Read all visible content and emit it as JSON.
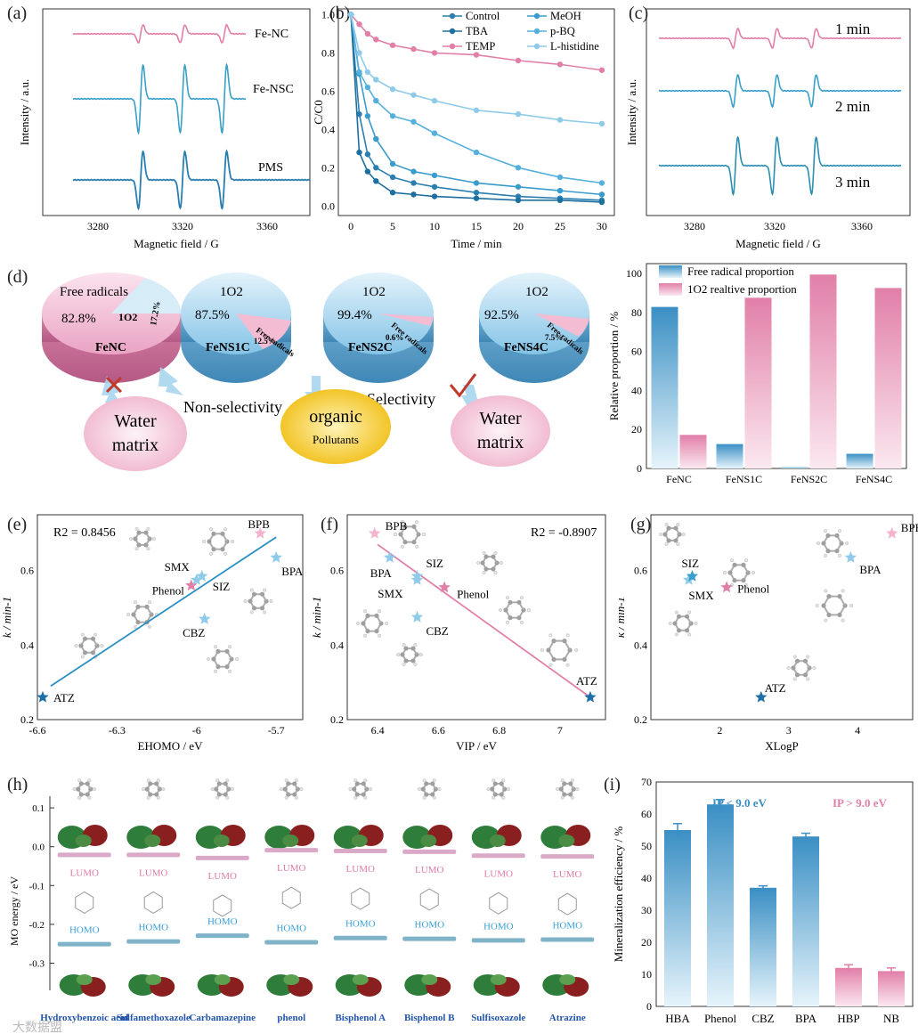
{
  "colors": {
    "pink": "#e17fa8",
    "lightpink": "#f4c4d8",
    "blue": "#3a8fc4",
    "darkblue": "#1f6fa6",
    "lightblue": "#8fcbe9",
    "teal": "#3aa0c8",
    "yellow": "#f6d24a"
  },
  "panel_labels": [
    "(a)",
    "(b)",
    "(c)",
    "(d)",
    "(e)",
    "(f)",
    "(g)",
    "(h)",
    "(i)"
  ],
  "panel_a": {
    "traces": [
      "Fe-NC",
      "Fe-NSC",
      "PMS"
    ],
    "xlabel": "Magnetic field / G",
    "ylabel": "Intensity / a.u.",
    "xticks": [
      "3280",
      "3320",
      "3360"
    ]
  },
  "panel_c": {
    "traces": [
      "1 min",
      "2 min",
      "3 min"
    ],
    "xlabel": "Magnetic field / G",
    "ylabel": "Intensity / a.u.",
    "xticks": [
      "3280",
      "3320",
      "3360"
    ]
  },
  "panel_d": {
    "pies": [
      {
        "catalyst": "FeNC",
        "main_label": "Free radicals",
        "main_value": "82.8%",
        "minor_label": "1O2",
        "minor_value": "17.2%"
      },
      {
        "catalyst": "FeNS1C",
        "main_label": "1O2",
        "main_value": "87.5%",
        "minor_label": "Free radicals",
        "minor_value": "12.5%"
      },
      {
        "catalyst": "FeNS2C",
        "main_label": "1O2",
        "main_value": "99.4%",
        "minor_label": "Free radicals",
        "minor_value": "0.6%"
      },
      {
        "catalyst": "FeNS4C",
        "main_label": "1O2",
        "main_value": "92.5%",
        "minor_label": "Free radicals",
        "minor_value": "7.5%"
      }
    ],
    "bubbles": [
      {
        "line1": "Water",
        "line2": "matrix"
      },
      {
        "line1": "organic",
        "line2": "Pollutants"
      },
      {
        "line1": "Water",
        "line2": "matrix"
      }
    ],
    "non_selectivity": "Non-selectivity",
    "selectivity": "Selectivity"
  },
  "panel_h": {
    "ylabel": "MO energy / eV",
    "yticks": [
      "0.1",
      "0.0",
      "-0.1",
      "-0.2",
      "-0.3"
    ],
    "lumo": "LUMO",
    "homo": "HOMO",
    "compounds": [
      "Hydroxybenzoic acid",
      "Sulfamethoxazole",
      "Carbamazepine",
      "phenol",
      "Bisphenol A",
      "Bisphenol B",
      "Sulfisoxazole",
      "Atrazine"
    ],
    "watermark": "大数据盟"
  },
  "chart_data": [
    {
      "id": "b",
      "type": "line",
      "xlabel": "Time / min",
      "ylabel": "C/C0",
      "xlim": [
        0,
        30
      ],
      "ylim": [
        0,
        1.0
      ],
      "xticks": [
        0,
        5,
        10,
        15,
        20,
        25,
        30
      ],
      "yticks": [
        0.0,
        0.2,
        0.4,
        0.6,
        0.8,
        1.0
      ],
      "series": [
        {
          "name": "Control",
          "color": "#2a7fb0",
          "x": [
            0,
            1,
            2,
            3,
            5,
            7.5,
            10,
            15,
            20,
            25,
            30
          ],
          "y": [
            1.0,
            0.48,
            0.27,
            0.2,
            0.15,
            0.12,
            0.1,
            0.07,
            0.05,
            0.04,
            0.03
          ]
        },
        {
          "name": "TBA",
          "color": "#1d6fa0",
          "x": [
            0,
            1,
            2,
            3,
            5,
            7.5,
            10,
            15,
            20,
            25,
            30
          ],
          "y": [
            1.0,
            0.28,
            0.18,
            0.13,
            0.07,
            0.06,
            0.05,
            0.04,
            0.03,
            0.03,
            0.02
          ]
        },
        {
          "name": "TEMP",
          "color": "#e17fa8",
          "x": [
            0,
            1,
            2,
            3,
            5,
            7.5,
            10,
            15,
            20,
            25,
            30
          ],
          "y": [
            1.0,
            0.95,
            0.9,
            0.87,
            0.84,
            0.82,
            0.8,
            0.79,
            0.76,
            0.74,
            0.71
          ]
        },
        {
          "name": "MeOH",
          "color": "#3a9ccc",
          "x": [
            0,
            1,
            2,
            3,
            5,
            7.5,
            10,
            15,
            20,
            25,
            30
          ],
          "y": [
            1.0,
            0.69,
            0.47,
            0.35,
            0.22,
            0.18,
            0.16,
            0.12,
            0.1,
            0.08,
            0.06
          ]
        },
        {
          "name": "p-BQ",
          "color": "#55b0dc",
          "x": [
            0,
            1,
            2,
            3,
            5,
            7.5,
            10,
            15,
            20,
            25,
            30
          ],
          "y": [
            1.0,
            0.7,
            0.62,
            0.55,
            0.47,
            0.44,
            0.38,
            0.28,
            0.2,
            0.15,
            0.12
          ]
        },
        {
          "name": "L-histidine",
          "color": "#8fcbe9",
          "x": [
            0,
            1,
            2,
            3,
            5,
            7.5,
            10,
            15,
            20,
            25,
            30
          ],
          "y": [
            1.0,
            0.8,
            0.7,
            0.66,
            0.61,
            0.58,
            0.55,
            0.5,
            0.48,
            0.45,
            0.43
          ]
        }
      ]
    },
    {
      "id": "d_bar",
      "type": "bar",
      "ylabel": "Relative proportion / %",
      "ylim": [
        0,
        100
      ],
      "yticks": [
        0,
        20,
        40,
        60,
        80,
        100
      ],
      "categories": [
        "FeNC",
        "FeNS1C",
        "FeNS2C",
        "FeNS4C"
      ],
      "series": [
        {
          "name": "Free radical proportion",
          "color": "#3a8fc4",
          "values": [
            82.8,
            12.5,
            0.6,
            7.5
          ]
        },
        {
          "name": "1O2 realtive proportion",
          "color": "#e17fa8",
          "values": [
            17.2,
            87.5,
            99.4,
            92.5
          ]
        }
      ]
    },
    {
      "id": "e",
      "type": "scatter",
      "xlabel": "EHOMO / eV",
      "ylabel": "k / min-1",
      "annotation": "R2 = 0.8456",
      "xlim": [
        -6.6,
        -5.6
      ],
      "ylim": [
        0.2,
        0.75
      ],
      "xticks": [
        -6.6,
        -6.3,
        -6.0,
        -5.7
      ],
      "yticks": [
        0.2,
        0.4,
        0.6
      ],
      "points": [
        {
          "label": "ATZ",
          "x": -6.58,
          "y": 0.26,
          "color": "#1f6fa6"
        },
        {
          "label": "CBZ",
          "x": -5.97,
          "y": 0.47,
          "color": "#8fcbe9"
        },
        {
          "label": "Phenol",
          "x": -6.02,
          "y": 0.56,
          "color": "#e17fa8"
        },
        {
          "label": "SMX",
          "x": -6.0,
          "y": 0.575,
          "color": "#8fcbe9"
        },
        {
          "label": "SIZ",
          "x": -5.98,
          "y": 0.585,
          "color": "#8fcbe9"
        },
        {
          "label": "BPA",
          "x": -5.7,
          "y": 0.635,
          "color": "#8fcbe9"
        },
        {
          "label": "BPB",
          "x": -5.76,
          "y": 0.7,
          "color": "#f4b4cf"
        }
      ],
      "fit": {
        "x": [
          -6.55,
          -5.7
        ],
        "y": [
          0.29,
          0.69
        ]
      }
    },
    {
      "id": "f",
      "type": "scatter",
      "xlabel": "VIP / eV",
      "ylabel": "k / min-1",
      "annotation": "R2 = -0.8907",
      "xlim": [
        6.3,
        7.15
      ],
      "ylim": [
        0.2,
        0.75
      ],
      "xticks": [
        6.4,
        6.6,
        6.8,
        7.0
      ],
      "yticks": [
        0.2,
        0.4,
        0.6
      ],
      "points": [
        {
          "label": "BPB",
          "x": 6.39,
          "y": 0.7,
          "color": "#f4b4cf"
        },
        {
          "label": "BPA",
          "x": 6.44,
          "y": 0.635,
          "color": "#8fcbe9"
        },
        {
          "label": "SIZ",
          "x": 6.53,
          "y": 0.585,
          "color": "#8fcbe9"
        },
        {
          "label": "SMX",
          "x": 6.53,
          "y": 0.575,
          "color": "#8fcbe9"
        },
        {
          "label": "Phenol",
          "x": 6.62,
          "y": 0.555,
          "color": "#e17fa8"
        },
        {
          "label": "CBZ",
          "x": 6.53,
          "y": 0.475,
          "color": "#8fcbe9"
        },
        {
          "label": "ATZ",
          "x": 7.1,
          "y": 0.26,
          "color": "#1f6fa6"
        }
      ],
      "fit": {
        "x": [
          6.4,
          7.1
        ],
        "y": [
          0.67,
          0.26
        ]
      }
    },
    {
      "id": "g",
      "type": "scatter",
      "xlabel": "XLogP",
      "ylabel": "k / min-1",
      "xlim": [
        1.0,
        4.8
      ],
      "ylim": [
        0.2,
        0.75
      ],
      "xticks": [
        2,
        3,
        4
      ],
      "yticks": [
        0.2,
        0.4,
        0.6
      ],
      "points": [
        {
          "label": "SIZ",
          "x": 1.55,
          "y": 0.575,
          "color": "#8fcbe9"
        },
        {
          "label": "SMX",
          "x": 1.6,
          "y": 0.585,
          "color": "#3a9ccc"
        },
        {
          "label": "Phenol",
          "x": 2.1,
          "y": 0.555,
          "color": "#e17fa8"
        },
        {
          "label": "ATZ",
          "x": 2.6,
          "y": 0.26,
          "color": "#1f6fa6"
        },
        {
          "label": "BPA",
          "x": 3.9,
          "y": 0.635,
          "color": "#8fcbe9"
        },
        {
          "label": "BPB",
          "x": 4.5,
          "y": 0.7,
          "color": "#f4b4cf"
        }
      ]
    },
    {
      "id": "i",
      "type": "bar",
      "ylabel": "Mineralization efficiency / %",
      "ylim": [
        0,
        70
      ],
      "yticks": [
        0,
        10,
        20,
        30,
        40,
        50,
        60,
        70
      ],
      "categories": [
        "HBA",
        "Phenol",
        "CBZ",
        "BPA",
        "HBP",
        "NB"
      ],
      "values": [
        55,
        63,
        37,
        53,
        12,
        11
      ],
      "errors": [
        2,
        1.5,
        0.6,
        1,
        1,
        1
      ],
      "colors": [
        "#3a8fc4",
        "#3a8fc4",
        "#3a8fc4",
        "#3a8fc4",
        "#e17fa8",
        "#e17fa8"
      ],
      "annotations": [
        "IP < 9.0 eV",
        "IP > 9.0 eV"
      ]
    }
  ]
}
